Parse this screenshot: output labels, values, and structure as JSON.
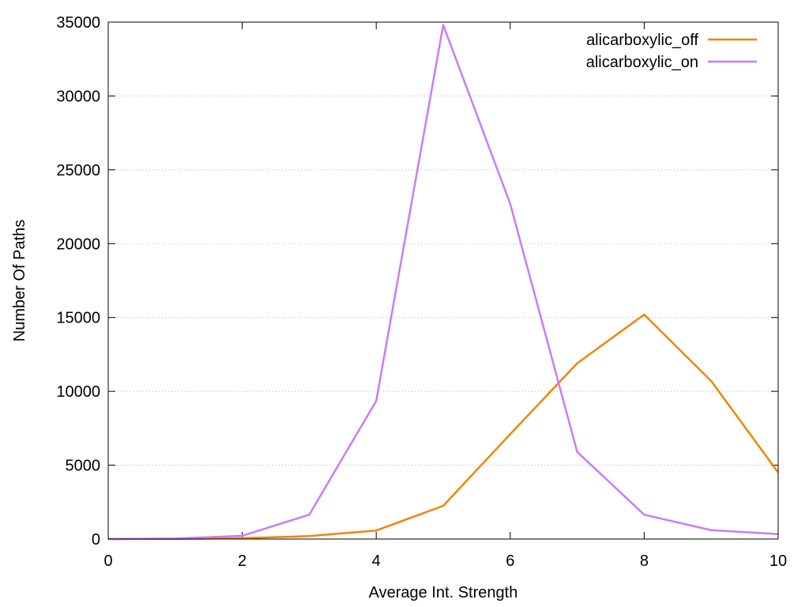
{
  "chart_data": {
    "type": "line",
    "xlabel": "Average Int. Strength",
    "ylabel": "Number Of Paths",
    "xlim": [
      0,
      10
    ],
    "ylim": [
      0,
      35000
    ],
    "xticks": [
      0,
      2,
      4,
      6,
      8,
      10
    ],
    "yticks": [
      0,
      5000,
      10000,
      15000,
      20000,
      25000,
      30000,
      35000
    ],
    "grid": true,
    "legend_position": "top-right",
    "series": [
      {
        "name": "alicarboxylic_off",
        "color": "#f28500",
        "x": [
          0,
          1,
          2,
          3,
          4,
          5,
          6,
          7,
          8,
          9,
          10
        ],
        "y": [
          0,
          10,
          60,
          200,
          580,
          2250,
          7100,
          11900,
          15200,
          10700,
          4500
        ]
      },
      {
        "name": "alicarboxylic_on",
        "color": "#c77cff",
        "x": [
          0,
          1,
          2,
          3,
          4,
          5,
          6,
          7,
          8,
          9,
          10
        ],
        "y": [
          0,
          30,
          220,
          1650,
          9350,
          34800,
          22700,
          5900,
          1650,
          600,
          330
        ]
      }
    ]
  }
}
